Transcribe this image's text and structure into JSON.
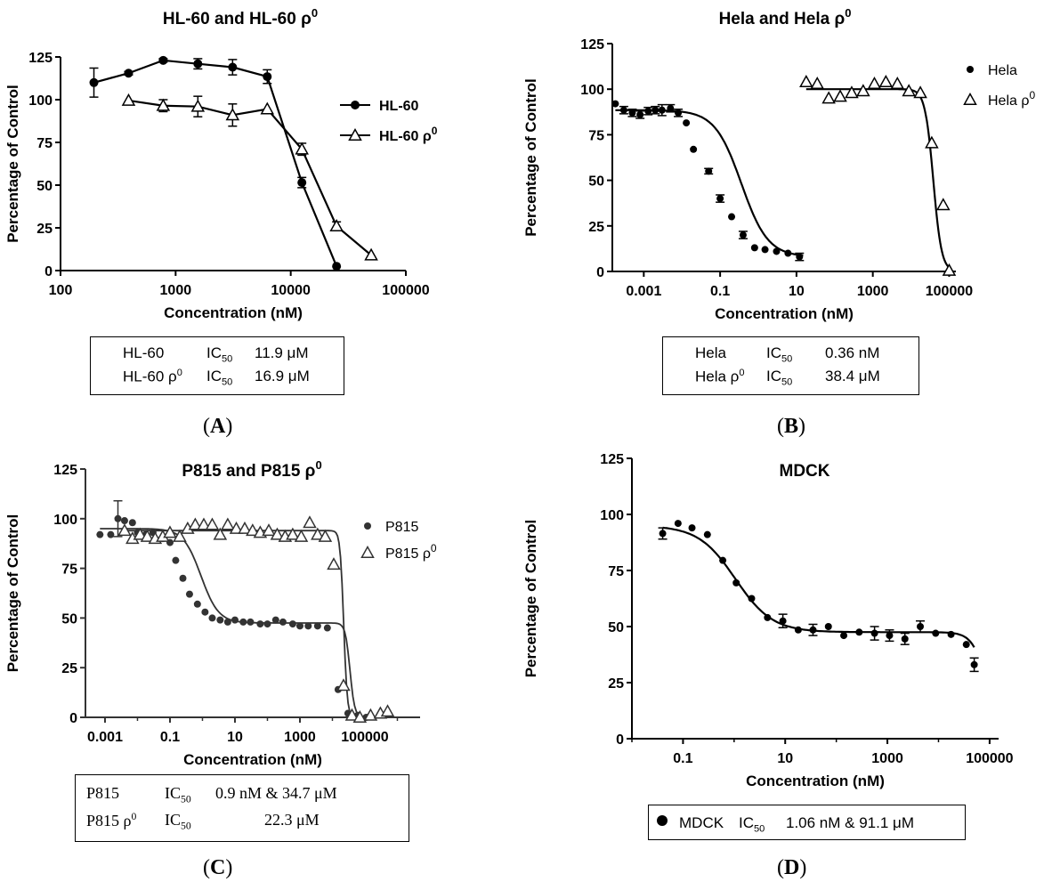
{
  "panels": {
    "A": {
      "label_open": "(",
      "label_letter": "A",
      "label_close": ")",
      "box": {
        "row1": {
          "name": "HL-60",
          "ic": "IC",
          "sub": "50",
          "value": "11.9 μM"
        },
        "row2": {
          "name": "HL-60 ρ",
          "sup": "0",
          "ic": "IC",
          "sub": "50",
          "value": "16.9 μM"
        }
      }
    },
    "B": {
      "label_open": "(",
      "label_letter": "B",
      "label_close": ")",
      "box": {
        "row1": {
          "name": "Hela",
          "ic": "IC",
          "sub": "50",
          "value": "0.36 nM"
        },
        "row2": {
          "name": "Hela ρ",
          "sup": "0",
          "ic": "IC",
          "sub": "50",
          "value": "38.4 μM"
        }
      }
    },
    "C": {
      "label_open": "(",
      "label_letter": "C",
      "label_close": ")",
      "box": {
        "row1": {
          "name": "P815",
          "ic": "IC",
          "sub": "50",
          "value": "0.9 nM & 34.7 μM"
        },
        "row2": {
          "name": "P815 ρ",
          "sup": "0",
          "ic": "IC",
          "sub": "50",
          "value": "22.3 μM"
        }
      }
    },
    "D": {
      "label_open": "(",
      "label_letter": "D",
      "label_close": ")",
      "box": {
        "row1": {
          "name": "MDCK",
          "ic": "IC",
          "sub": "50",
          "value": "1.06 nM & 91.1 μM"
        }
      }
    }
  },
  "chart_data": [
    {
      "id": "A",
      "type": "line",
      "title": "HL-60 and HL-60 ρ",
      "title_sup": "0",
      "xlabel": "Concentration (nM)",
      "ylabel": "Percentage of Control",
      "xscale": "log",
      "xlim": [
        100,
        100000
      ],
      "ylim": [
        0,
        125
      ],
      "xticks": [
        100,
        1000,
        10000,
        100000
      ],
      "xtick_labels": [
        "100",
        "1000",
        "10000",
        "100000"
      ],
      "yticks": [
        0,
        25,
        50,
        75,
        100,
        125
      ],
      "legend_position": "right",
      "series": [
        {
          "name": "HL-60",
          "name_sup": "",
          "marker": "circle",
          "x": [
            195,
            390,
            780,
            1560,
            3125,
            6250,
            12500,
            25000
          ],
          "y": [
            110,
            115.5,
            123,
            121,
            119,
            113.5,
            51.5,
            2.5
          ],
          "err": [
            8.5,
            1,
            1,
            3,
            4.5,
            4,
            3,
            0
          ]
        },
        {
          "name": "HL-60 ρ",
          "name_sup": "0",
          "marker": "triangle",
          "x": [
            390,
            780,
            1560,
            3125,
            6250,
            12500,
            25000,
            50000
          ],
          "y": [
            99.5,
            96.5,
            96,
            91,
            94.5,
            71,
            26,
            9
          ],
          "err": [
            0,
            3.5,
            6,
            6.5,
            0,
            3.5,
            2.5,
            0
          ]
        }
      ]
    },
    {
      "id": "B",
      "type": "scatter",
      "title": "Hela and Hela ρ",
      "title_sup": "0",
      "xlabel": "Concentration (nM)",
      "ylabel": "Percentage of Control",
      "xscale": "log",
      "xlim": [
        0.00015,
        150000
      ],
      "ylim": [
        0,
        125
      ],
      "xticks": [
        0.001,
        0.1,
        10,
        1000,
        100000
      ],
      "xtick_labels": [
        "0.001",
        "0.1",
        "10",
        "1000",
        "100000"
      ],
      "yticks": [
        0,
        25,
        50,
        75,
        100,
        125
      ],
      "legend_position": "top-right",
      "series": [
        {
          "name": "Hela",
          "name_sup": "",
          "marker": "dot",
          "x": [
            0.00018,
            0.0003,
            0.0005,
            0.0008,
            0.0013,
            0.002,
            0.003,
            0.005,
            0.008,
            0.013,
            0.02,
            0.05,
            0.1,
            0.2,
            0.4,
            0.8,
            1.5,
            3,
            6,
            12
          ],
          "y": [
            92,
            88.5,
            87,
            86,
            88,
            88.5,
            88.5,
            89.5,
            87,
            81.5,
            67,
            55,
            40,
            30,
            20,
            13,
            12,
            11,
            10,
            8
          ],
          "err": [
            0,
            2,
            2,
            2,
            2,
            2,
            3,
            2,
            2,
            0,
            0,
            1.5,
            2,
            0,
            2,
            0,
            0,
            0,
            0,
            2
          ],
          "fit": {
            "top": 88.5,
            "bottom": 8,
            "ic50": 0.36,
            "hill": 1.25,
            "xmin": 0.00018,
            "xmax": 15
          }
        },
        {
          "name": "Hela ρ",
          "name_sup": "0",
          "marker": "triangle",
          "x": [
            18,
            35,
            70,
            140,
            280,
            560,
            1100,
            2200,
            4400,
            8800,
            17600,
            35000,
            70000,
            100000
          ],
          "y": [
            104,
            103,
            95,
            96,
            98,
            99,
            103,
            104,
            103,
            99,
            98,
            70.5,
            36.5,
            0.5
          ],
          "err": [],
          "fit": {
            "top": 100,
            "bottom": 0,
            "ic50": 38400,
            "hill": 4,
            "xmin": 18,
            "xmax": 100000
          }
        }
      ]
    },
    {
      "id": "C",
      "type": "scatter",
      "title": "P815 and P815 ρ",
      "title_sup": "0",
      "xlabel": "Concentration (nM)",
      "ylabel": "Percentage of Control",
      "xscale": "log",
      "xlim": [
        0.00025,
        5000000
      ],
      "ylim": [
        0,
        125
      ],
      "xticks": [
        0.001,
        0.1,
        10,
        1000,
        100000
      ],
      "xtick_labels": [
        "0.001",
        "0.1",
        "10",
        "1000",
        "100000"
      ],
      "yticks": [
        0,
        25,
        50,
        75,
        100,
        125
      ],
      "legend_position": "top-right",
      "series": [
        {
          "name": "P815",
          "name_sup": "",
          "marker": "dot",
          "x": [
            0.0007,
            0.0015,
            0.0025,
            0.004,
            0.007,
            0.01,
            0.018,
            0.03,
            0.06,
            0.1,
            0.15,
            0.25,
            0.4,
            0.7,
            1.2,
            2,
            3.5,
            6,
            10,
            18,
            30,
            60,
            100,
            180,
            300,
            600,
            1000,
            1800,
            3500,
            7000,
            15000,
            30000,
            60000,
            110000
          ],
          "y": [
            92,
            92,
            100,
            99,
            98,
            93,
            92,
            93,
            90,
            88,
            79,
            70,
            62,
            57,
            53,
            50,
            49,
            48,
            49,
            48,
            48,
            47,
            47,
            49,
            48,
            47,
            46,
            46,
            46,
            45,
            14,
            2,
            1,
            0
          ],
          "err": [
            0,
            0,
            9,
            0,
            0,
            0,
            0,
            0,
            0,
            0,
            0,
            0,
            0,
            0,
            0,
            0,
            0,
            0,
            0,
            0,
            0,
            0,
            0,
            0,
            0,
            0,
            0,
            0,
            0,
            0,
            0,
            0,
            0,
            0
          ],
          "fit": {
            "kind": "biphasic",
            "top": 95,
            "mid": 47.5,
            "bottom": 0,
            "ic50a": 0.9,
            "hill_a": 1.6,
            "ic50b": 34700,
            "hill_b": 6,
            "xmin": 0.0007,
            "xmax": 110000
          }
        },
        {
          "name": "P815 ρ",
          "name_sup": "0",
          "marker": "triangle",
          "x": [
            0.004,
            0.007,
            0.012,
            0.02,
            0.035,
            0.06,
            0.1,
            0.2,
            0.35,
            0.6,
            1.1,
            2,
            3.5,
            6,
            11,
            20,
            35,
            60,
            110,
            200,
            350,
            600,
            1100,
            2000,
            3500,
            6000,
            11000,
            22000,
            40000,
            70000,
            150000,
            300000,
            500000
          ],
          "y": [
            94,
            90,
            92,
            91,
            90,
            91,
            93,
            91,
            95,
            97,
            97,
            97,
            92,
            97,
            95,
            95,
            94,
            93,
            94,
            92,
            91,
            92,
            91,
            98,
            92,
            91,
            77,
            16,
            1,
            0,
            1,
            2,
            3
          ],
          "err": [],
          "fit": {
            "kind": "sigmoid",
            "top": 94,
            "bottom": 0,
            "ic50": 22300,
            "hill": 8,
            "xmin": 0.004,
            "xmax": 110000
          }
        }
      ]
    },
    {
      "id": "D",
      "type": "scatter",
      "title": "MDCK",
      "title_sup": "",
      "xlabel": "Concentration (nM)",
      "ylabel": "Percentage of Control",
      "xscale": "log",
      "xlim": [
        0.01,
        150000
      ],
      "ylim": [
        0,
        125
      ],
      "xticks": [
        0.1,
        10,
        1000,
        100000
      ],
      "xtick_labels": [
        "0.1",
        "10",
        "1000",
        "100000"
      ],
      "yticks": [
        0,
        25,
        50,
        75,
        100,
        125
      ],
      "legend_position": "bottom",
      "series": [
        {
          "name": "MDCK",
          "name_sup": "",
          "marker": "dot",
          "x": [
            0.04,
            0.08,
            0.15,
            0.3,
            0.6,
            1.1,
            2.2,
            4.5,
            9,
            18,
            35,
            70,
            140,
            280,
            560,
            1100,
            2200,
            4400,
            8800,
            17600,
            35000,
            50000
          ],
          "y": [
            91.5,
            96,
            94,
            91,
            79.5,
            69.5,
            62.5,
            54,
            52.5,
            48.5,
            48.5,
            50,
            46,
            47.5,
            47,
            46,
            44.5,
            50,
            47,
            46.5,
            42,
            33
          ],
          "err": [
            2.5,
            0,
            0,
            0,
            0,
            0,
            0,
            0,
            3,
            0,
            2.5,
            0,
            0,
            0,
            3,
            2.5,
            2.5,
            2.5,
            0,
            0,
            0,
            3
          ],
          "fit": {
            "kind": "biphasic",
            "top": 95,
            "mid": 47.5,
            "bottom": 0,
            "ic50a": 1.06,
            "hill_a": 1.2,
            "ic50b": 91100,
            "hill_b": 3,
            "xmin": 0.04,
            "xmax": 50000
          }
        }
      ]
    }
  ]
}
